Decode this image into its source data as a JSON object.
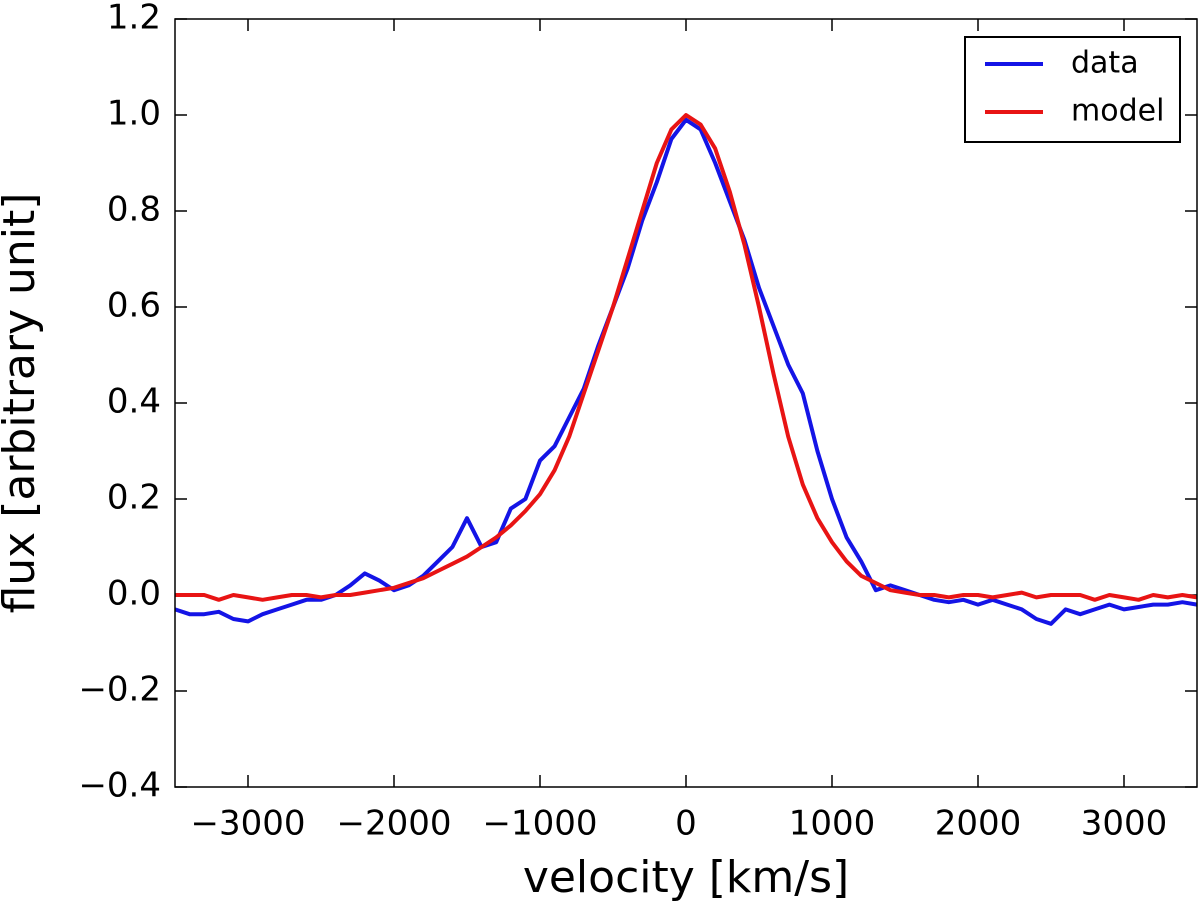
{
  "chart_data": {
    "type": "line",
    "xlabel": "velocity [km/s]",
    "ylabel": "flux [arbitrary unit]",
    "x": [
      -3500,
      -3400,
      -3300,
      -3200,
      -3100,
      -3000,
      -2900,
      -2800,
      -2700,
      -2600,
      -2500,
      -2400,
      -2300,
      -2200,
      -2100,
      -2000,
      -1900,
      -1800,
      -1700,
      -1600,
      -1500,
      -1400,
      -1300,
      -1200,
      -1100,
      -1000,
      -900,
      -800,
      -700,
      -600,
      -500,
      -400,
      -300,
      -200,
      -100,
      0,
      100,
      200,
      300,
      400,
      500,
      600,
      700,
      800,
      900,
      1000,
      1100,
      1200,
      1300,
      1400,
      1500,
      1600,
      1700,
      1800,
      1900,
      2000,
      2100,
      2200,
      2300,
      2400,
      2500,
      2600,
      2700,
      2800,
      2900,
      3000,
      3100,
      3200,
      3300,
      3400,
      3500
    ],
    "series": [
      {
        "name": "data",
        "color": "#1414e6",
        "values": [
          -0.03,
          -0.04,
          -0.04,
          -0.035,
          -0.05,
          -0.055,
          -0.04,
          -0.03,
          -0.02,
          -0.01,
          -0.01,
          0.0,
          0.02,
          0.045,
          0.03,
          0.01,
          0.02,
          0.04,
          0.07,
          0.1,
          0.16,
          0.1,
          0.11,
          0.18,
          0.2,
          0.28,
          0.31,
          0.37,
          0.43,
          0.52,
          0.6,
          0.68,
          0.78,
          0.86,
          0.95,
          0.99,
          0.97,
          0.9,
          0.82,
          0.74,
          0.64,
          0.56,
          0.48,
          0.42,
          0.3,
          0.2,
          0.12,
          0.07,
          0.01,
          0.02,
          0.01,
          0.0,
          -0.01,
          -0.015,
          -0.01,
          -0.02,
          -0.01,
          -0.02,
          -0.03,
          -0.05,
          -0.06,
          -0.03,
          -0.04,
          -0.03,
          -0.02,
          -0.03,
          -0.025,
          -0.02,
          -0.02,
          -0.015,
          -0.02
        ]
      },
      {
        "name": "model",
        "color": "#e81414",
        "values": [
          0.0,
          0.0,
          0.0,
          -0.01,
          0.0,
          -0.005,
          -0.01,
          -0.005,
          0.0,
          0.0,
          -0.005,
          0.0,
          0.0,
          0.005,
          0.01,
          0.015,
          0.025,
          0.035,
          0.05,
          0.065,
          0.08,
          0.1,
          0.12,
          0.145,
          0.175,
          0.21,
          0.26,
          0.33,
          0.42,
          0.51,
          0.6,
          0.7,
          0.8,
          0.9,
          0.97,
          1.0,
          0.98,
          0.93,
          0.84,
          0.73,
          0.6,
          0.46,
          0.33,
          0.23,
          0.16,
          0.11,
          0.07,
          0.04,
          0.025,
          0.01,
          0.005,
          0.0,
          0.0,
          -0.005,
          0.0,
          0.0,
          -0.005,
          0.0,
          0.005,
          -0.005,
          0.0,
          0.0,
          0.0,
          -0.01,
          0.0,
          -0.005,
          -0.01,
          0.0,
          -0.005,
          0.0,
          -0.005
        ]
      }
    ],
    "xlim": [
      -3500,
      3500
    ],
    "xticks": [
      {
        "value": -3000,
        "label": "−3000"
      },
      {
        "value": -2000,
        "label": "−2000"
      },
      {
        "value": -1000,
        "label": "−1000"
      },
      0,
      1000,
      2000,
      3000
    ],
    "ylim": [
      -0.4,
      1.2
    ],
    "yticks": [
      {
        "value": -0.4,
        "label": "−0.4"
      },
      {
        "value": -0.2,
        "label": "−0.2"
      },
      {
        "value": 0,
        "label": "0.0"
      },
      0.2,
      0.4,
      0.6,
      0.8,
      {
        "value": 1,
        "label": "1.0"
      },
      1.2
    ],
    "legend": "upper right"
  }
}
